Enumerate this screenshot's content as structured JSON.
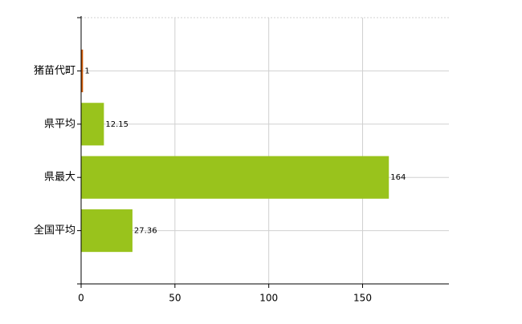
{
  "chart_data": {
    "type": "bar",
    "orientation": "horizontal",
    "categories": [
      "猪苗代町",
      "県平均",
      "県最大",
      "全国平均"
    ],
    "values": [
      1,
      12.15,
      164,
      27.36
    ],
    "colors": [
      "#cc5500",
      "#99c31c",
      "#99c31c",
      "#99c31c"
    ],
    "xlim": [
      0,
      196
    ],
    "xticks": [
      0,
      50,
      100,
      150
    ],
    "grid": true
  }
}
